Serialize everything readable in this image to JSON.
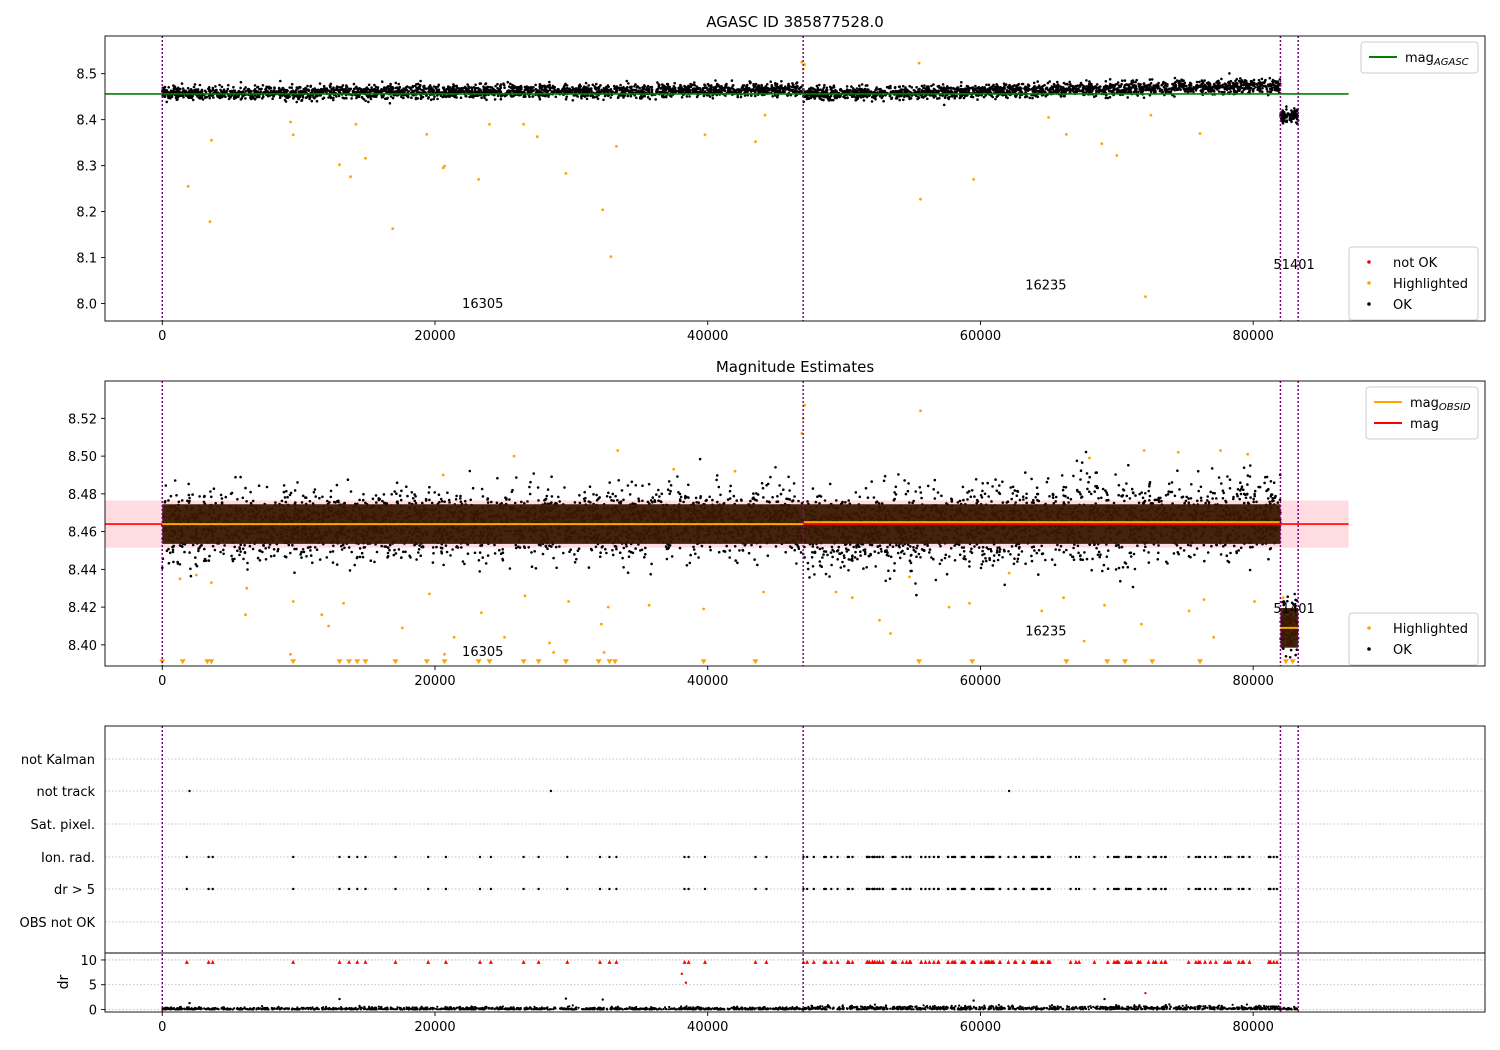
{
  "figure": {
    "sync_lines_x": [
      0,
      47000,
      82000,
      83300
    ]
  },
  "chart_data": [
    {
      "type": "scatter",
      "title": "AGASC ID 385877528.0",
      "xlabel": "",
      "ylabel": "",
      "xlim": [
        -4200,
        97000
      ],
      "ylim": [
        7.962,
        8.582
      ],
      "xticks": [
        0,
        20000,
        40000,
        60000,
        80000
      ],
      "xtick_labels": [
        "0",
        "20000",
        "40000",
        "60000",
        "80000"
      ],
      "yticks": [
        8.0,
        8.1,
        8.2,
        8.3,
        8.4,
        8.5
      ],
      "ytick_labels": [
        "8.0",
        "8.1",
        "8.2",
        "8.3",
        "8.4",
        "8.5"
      ],
      "grid": false,
      "legend_top": {
        "placement": "upper-right",
        "entries": [
          {
            "label": "mag",
            "subscript": "AGASC",
            "color": "#008000",
            "kind": "line"
          }
        ]
      },
      "legend_bottom": {
        "placement": "lower-right",
        "entries": [
          {
            "label": "not OK",
            "color": "#ff0000",
            "kind": "dot"
          },
          {
            "label": "Highlighted",
            "color": "#ffa500",
            "kind": "dot"
          },
          {
            "label": "OK",
            "color": "#000000",
            "kind": "dot"
          }
        ]
      },
      "reference_line": {
        "name": "mag_AGASC",
        "y": 8.456,
        "x_range": [
          -4200,
          87000
        ],
        "color": "#008000"
      },
      "obsid_labels": [
        {
          "text": "16305",
          "x": 23500,
          "y": 7.99
        },
        {
          "text": "16235",
          "x": 64800,
          "y": 8.03
        },
        {
          "text": "51401",
          "x": 83000,
          "y": 8.075
        }
      ],
      "segments": [
        {
          "x": [
            0,
            47000
          ],
          "center_start": 8.457,
          "center_end": 8.465,
          "half_width": 0.013
        },
        {
          "x": [
            47000,
            82000
          ],
          "center_start": 8.455,
          "center_end": 8.474,
          "half_width": 0.013
        },
        {
          "x": [
            82000,
            83300
          ],
          "center_start": 8.408,
          "center_end": 8.408,
          "half_width": 0.013
        }
      ],
      "series": [
        {
          "name": "Highlighted",
          "color": "#ffa500",
          "points": [
            [
              1900,
              8.255
            ],
            [
              3500,
              8.178
            ],
            [
              3600,
              8.355
            ],
            [
              9600,
              8.367
            ],
            [
              9400,
              8.395
            ],
            [
              13000,
              8.302
            ],
            [
              13800,
              8.276
            ],
            [
              14900,
              8.316
            ],
            [
              14200,
              8.39
            ],
            [
              16900,
              8.163
            ],
            [
              19400,
              8.368
            ],
            [
              20600,
              8.295
            ],
            [
              20700,
              8.299
            ],
            [
              23200,
              8.27
            ],
            [
              24000,
              8.39
            ],
            [
              26500,
              8.39
            ],
            [
              27500,
              8.363
            ],
            [
              29600,
              8.283
            ],
            [
              32300,
              8.204
            ],
            [
              32900,
              8.102
            ],
            [
              33300,
              8.342
            ],
            [
              39800,
              8.367
            ],
            [
              43500,
              8.352
            ],
            [
              44200,
              8.41
            ],
            [
              55600,
              8.227
            ],
            [
              55500,
              8.523
            ],
            [
              59500,
              8.27
            ],
            [
              65000,
              8.405
            ],
            [
              66300,
              8.368
            ],
            [
              68900,
              8.348
            ],
            [
              70000,
              8.322
            ],
            [
              72100,
              8.015
            ],
            [
              72500,
              8.41
            ],
            [
              76100,
              8.37
            ],
            [
              46900,
              8.525
            ],
            [
              47000,
              8.51
            ],
            [
              47100,
              8.52
            ]
          ]
        },
        {
          "name": "not OK",
          "color": "#ff0000",
          "points": []
        }
      ]
    },
    {
      "type": "scatter",
      "title": "Magnitude Estimates",
      "xlabel": "",
      "ylabel": "",
      "xlim": [
        -4200,
        97000
      ],
      "ylim": [
        8.3888,
        8.5398
      ],
      "xticks": [
        0,
        20000,
        40000,
        60000,
        80000
      ],
      "xtick_labels": [
        "0",
        "20000",
        "40000",
        "60000",
        "80000"
      ],
      "yticks": [
        8.4,
        8.42,
        8.44,
        8.46,
        8.48,
        8.5,
        8.52
      ],
      "ytick_labels": [
        "8.40",
        "8.42",
        "8.44",
        "8.46",
        "8.48",
        "8.50",
        "8.52"
      ],
      "grid": false,
      "legend_top": {
        "placement": "upper-right",
        "entries": [
          {
            "label": "mag",
            "subscript": "OBSID",
            "color": "#ffa500",
            "kind": "line"
          },
          {
            "label": "mag",
            "subscript": "",
            "color": "#ff0000",
            "kind": "line"
          }
        ]
      },
      "legend_bottom": {
        "placement": "lower-right",
        "entries": [
          {
            "label": "Highlighted",
            "color": "#ffa500",
            "kind": "dot"
          },
          {
            "label": "OK",
            "color": "#000000",
            "kind": "dot"
          }
        ]
      },
      "reference_line": {
        "name": "mag",
        "y": 8.464,
        "x_range": [
          -4200,
          87000
        ],
        "color": "#ff0000"
      },
      "reference_band": {
        "y": [
          8.4515,
          8.4765
        ],
        "x_range": [
          -4200,
          87000
        ],
        "color": "#ffc0c8"
      },
      "obsid_mags": [
        {
          "x": [
            0,
            47000
          ],
          "y": 8.464
        },
        {
          "x": [
            47000,
            82000
          ],
          "y": 8.465
        },
        {
          "x": [
            82000,
            83300
          ],
          "y": 8.409
        }
      ],
      "obsid_labels": [
        {
          "text": "16305",
          "x": 23500,
          "y": 8.394
        },
        {
          "text": "16235",
          "x": 64800,
          "y": 8.405
        },
        {
          "text": "51401",
          "x": 83000,
          "y": 8.417
        }
      ],
      "segments": [
        {
          "x": [
            0,
            47000
          ],
          "center_start": 8.463,
          "center_end": 8.465,
          "half_width": 0.021
        },
        {
          "x": [
            47000,
            82000
          ],
          "center_start": 8.46,
          "center_end": 8.468,
          "half_width": 0.025
        },
        {
          "x": [
            82000,
            83300
          ],
          "center_start": 8.409,
          "center_end": 8.409,
          "half_width": 0.019
        }
      ],
      "series": [
        {
          "name": "Highlighted",
          "color": "#ffa500",
          "points": [
            [
              1300,
              8.435
            ],
            [
              2500,
              8.437
            ],
            [
              3600,
              8.433
            ],
            [
              6200,
              8.43
            ],
            [
              6100,
              8.416
            ],
            [
              9400,
              8.395
            ],
            [
              9600,
              8.423
            ],
            [
              11700,
              8.416
            ],
            [
              12200,
              8.41
            ],
            [
              13300,
              8.422
            ],
            [
              17600,
              8.409
            ],
            [
              19600,
              8.427
            ],
            [
              20700,
              8.395
            ],
            [
              21400,
              8.404
            ],
            [
              23400,
              8.417
            ],
            [
              25100,
              8.404
            ],
            [
              26600,
              8.426
            ],
            [
              28400,
              8.401
            ],
            [
              28700,
              8.396
            ],
            [
              29800,
              8.423
            ],
            [
              32200,
              8.411
            ],
            [
              32400,
              8.396
            ],
            [
              32700,
              8.42
            ],
            [
              35700,
              8.421
            ],
            [
              39700,
              8.419
            ],
            [
              44100,
              8.428
            ],
            [
              20600,
              8.49
            ],
            [
              25800,
              8.5
            ],
            [
              33400,
              8.503
            ],
            [
              37500,
              8.493
            ],
            [
              42000,
              8.492
            ],
            [
              46900,
              8.512
            ],
            [
              47100,
              8.527
            ],
            [
              47000,
              8.52
            ],
            [
              49400,
              8.428
            ],
            [
              50600,
              8.425
            ],
            [
              52600,
              8.413
            ],
            [
              53400,
              8.406
            ],
            [
              54800,
              8.436
            ],
            [
              55600,
              8.524
            ],
            [
              57700,
              8.42
            ],
            [
              59200,
              8.422
            ],
            [
              62100,
              8.438
            ],
            [
              64500,
              8.418
            ],
            [
              66100,
              8.425
            ],
            [
              67600,
              8.402
            ],
            [
              69100,
              8.421
            ],
            [
              71800,
              8.411
            ],
            [
              75300,
              8.418
            ],
            [
              76400,
              8.424
            ],
            [
              77100,
              8.404
            ],
            [
              80100,
              8.423
            ],
            [
              68000,
              8.499
            ],
            [
              72000,
              8.503
            ],
            [
              74500,
              8.502
            ],
            [
              77600,
              8.503
            ],
            [
              79600,
              8.501
            ],
            [
              82200,
              8.425
            ]
          ]
        }
      ],
      "triangles": {
        "y": 8.3908,
        "x": [
          0,
          1500,
          3300,
          3600,
          9600,
          13000,
          13700,
          14300,
          14900,
          17100,
          19400,
          20700,
          23200,
          24000,
          26500,
          27600,
          29600,
          32000,
          32800,
          33200,
          39700,
          43500,
          55500,
          59400,
          66300,
          69300,
          70600,
          72600,
          76100,
          82400,
          82900
        ]
      }
    },
    {
      "type": "scatter",
      "title": "",
      "xlabel": "",
      "ylabel": "dr",
      "xlim": [
        -4200,
        97000
      ],
      "flag_rows": [
        "not Kalman",
        "not track",
        "Sat. pixel.",
        "Ion. rad.",
        "dr > 5",
        "OBS not OK"
      ],
      "dr_axis": {
        "ylim": [
          -0.5,
          11.4
        ],
        "yticks": [
          0,
          5,
          10
        ],
        "ytick_labels": [
          "0",
          "5",
          "10"
        ]
      },
      "xticks": [
        0,
        20000,
        40000,
        60000,
        80000
      ],
      "xtick_labels": [
        "0",
        "20000",
        "40000",
        "60000",
        "80000"
      ],
      "flag_events": {
        "not track": [
          2000,
          28500,
          62100
        ],
        "dr > 5": [
          1800,
          3400,
          3700,
          9600,
          13000,
          13700,
          14300,
          14900,
          17100,
          19500,
          20800,
          23300,
          24100,
          26500,
          27600,
          29700,
          32100,
          32800,
          33300,
          38300,
          38600,
          39800,
          43500,
          44300
        ],
        "Ion. rad.": [
          1800,
          3400,
          3700,
          9600,
          13000,
          13700,
          14300,
          14900,
          17100,
          19500,
          20800,
          23300,
          24100,
          26500,
          27600,
          29700,
          32100,
          32800,
          33300,
          38300,
          38600,
          39800,
          43500,
          44300
        ]
      },
      "dr_outliers": [
        {
          "x": 38100,
          "y": 7.2,
          "color": "#ff0000"
        },
        {
          "x": 38400,
          "y": 5.4,
          "color": "#ff0000"
        },
        {
          "x": 72100,
          "y": 3.3,
          "color": "#ff0000"
        },
        {
          "x": 13000,
          "y": 2.1,
          "color": "#000000"
        },
        {
          "x": 29600,
          "y": 2.2,
          "color": "#000000"
        },
        {
          "x": 32300,
          "y": 2.0,
          "color": "#000000"
        },
        {
          "x": 59500,
          "y": 1.8,
          "color": "#000000"
        },
        {
          "x": 69100,
          "y": 2.1,
          "color": "#000000"
        },
        {
          "x": 2000,
          "y": 1.3,
          "color": "#000000"
        }
      ]
    }
  ]
}
